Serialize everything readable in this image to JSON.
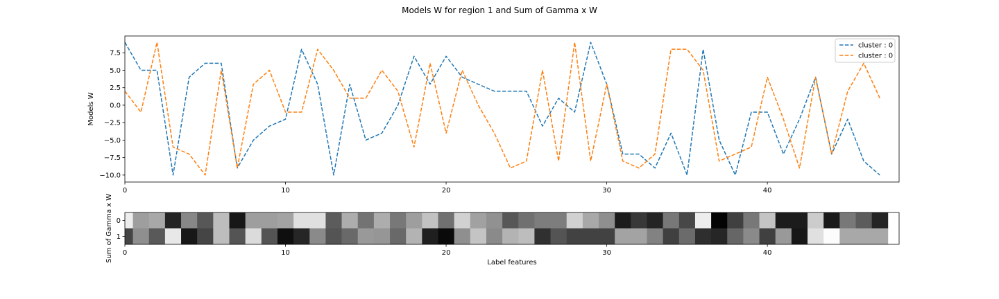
{
  "figure": {
    "title": "Models W for region 1 and Sum of Gamma x W"
  },
  "colors": {
    "series_0": "#1f77b4",
    "series_1": "#ff7f0e",
    "axes": "#000000",
    "background": "#ffffff"
  },
  "chart_data": [
    {
      "type": "line",
      "title": "",
      "xlabel": "",
      "ylabel": "Models W",
      "xlim": [
        0,
        48.2
      ],
      "ylim": [
        -11.0,
        9.9
      ],
      "xticks": [
        0,
        10,
        20,
        30,
        40
      ],
      "yticks": [
        -10.0,
        -7.5,
        -5.0,
        -2.5,
        0.0,
        2.5,
        5.0,
        7.5
      ],
      "ytick_labels": [
        "−10.0",
        "−7.5",
        "−5.0",
        "−2.5",
        "0.0",
        "2.5",
        "5.0",
        "7.5"
      ],
      "line_style": "dashed",
      "grid": false,
      "legend_position": "top-right",
      "series": [
        {
          "name": "cluster : 0",
          "color": "#1f77b4",
          "x": [
            0,
            1,
            2,
            3,
            4,
            5,
            6,
            7,
            8,
            9,
            10,
            11,
            12,
            13,
            14,
            15,
            16,
            17,
            18,
            19,
            20,
            21,
            22,
            23,
            24,
            25,
            26,
            27,
            28,
            29,
            30,
            31,
            32,
            33,
            34,
            35,
            36,
            37,
            38,
            39,
            40,
            41,
            42,
            43,
            44,
            45,
            46,
            47
          ],
          "y": [
            9,
            5,
            5,
            -10,
            4,
            6,
            6,
            -9,
            -5,
            -3,
            -2,
            8,
            3,
            -10,
            3,
            -5,
            -4,
            0,
            7,
            3,
            7,
            4,
            3,
            2,
            2,
            2,
            -3,
            1,
            -1,
            9,
            3,
            -7,
            -7,
            -9,
            -4,
            -10,
            8,
            -5,
            -10,
            -1,
            -1,
            -7,
            -2,
            4,
            -7,
            -2,
            -8,
            -10
          ]
        },
        {
          "name": "cluster : 0",
          "color": "#ff7f0e",
          "x": [
            0,
            1,
            2,
            3,
            4,
            5,
            6,
            7,
            8,
            9,
            10,
            11,
            12,
            13,
            14,
            15,
            16,
            17,
            18,
            19,
            20,
            21,
            22,
            23,
            24,
            25,
            26,
            27,
            28,
            29,
            30,
            31,
            32,
            33,
            34,
            35,
            36,
            37,
            38,
            39,
            40,
            41,
            42,
            43,
            44,
            45,
            46,
            47
          ],
          "y": [
            2,
            -1,
            9,
            -6,
            -7,
            -10,
            5,
            -9,
            3,
            5,
            -1,
            -1,
            8,
            5,
            1,
            1,
            5,
            2,
            -6,
            6,
            -4,
            5,
            0,
            -4,
            -9,
            -8,
            5,
            -8,
            9,
            -8,
            3,
            -8,
            -9,
            -7,
            8,
            8,
            5,
            -8,
            -7,
            -6,
            4,
            -2,
            -9,
            4,
            -7,
            2,
            6,
            1
          ]
        }
      ]
    },
    {
      "type": "heatmap",
      "title": "",
      "xlabel": "Label features",
      "ylabel": "Sum of Gamma x W",
      "colormap": "gray",
      "xlim": [
        0,
        48.2
      ],
      "xticks": [
        0,
        10,
        20,
        30,
        40
      ],
      "yticks": [
        0,
        1
      ],
      "rows": [
        [
          0.93,
          0.62,
          0.66,
          0.14,
          0.53,
          0.34,
          0.74,
          0.09,
          0.62,
          0.62,
          0.64,
          0.88,
          0.88,
          0.36,
          0.68,
          0.45,
          0.68,
          0.47,
          0.62,
          0.76,
          0.44,
          0.82,
          0.63,
          0.57,
          0.34,
          0.44,
          0.49,
          0.49,
          0.82,
          0.66,
          0.56,
          0.11,
          0.22,
          0.14,
          0.47,
          0.28,
          0.93,
          0.01,
          0.25,
          0.47,
          0.77,
          0.11,
          0.11,
          0.8,
          0.1,
          0.47,
          0.36,
          0.14
        ],
        [
          0.27,
          0.56,
          0.35,
          0.91,
          0.09,
          0.27,
          0.74,
          0.33,
          0.86,
          0.33,
          0.06,
          0.15,
          0.54,
          0.33,
          0.41,
          0.6,
          0.59,
          0.41,
          0.7,
          0.12,
          0.04,
          0.56,
          0.77,
          0.54,
          0.7,
          0.74,
          0.19,
          0.33,
          0.26,
          0.26,
          0.26,
          0.64,
          0.64,
          0.51,
          0.25,
          0.42,
          0.18,
          0.15,
          0.4,
          0.54,
          0.25,
          0.6,
          0.09,
          0.88,
          0.99,
          0.66,
          0.66,
          0.66
        ]
      ]
    }
  ]
}
